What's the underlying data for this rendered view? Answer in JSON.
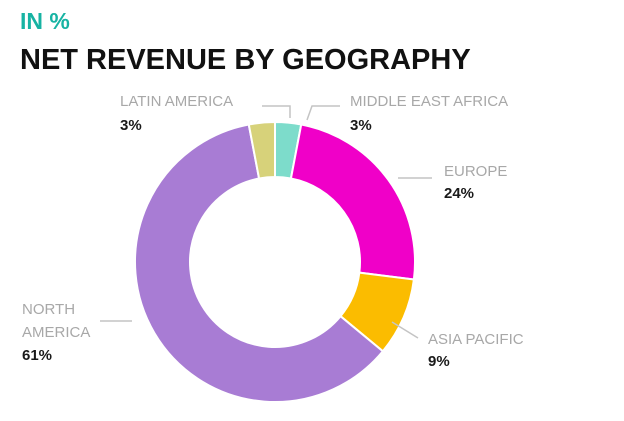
{
  "chart_data": {
    "type": "pie",
    "variant": "donut",
    "unit_label": "IN %",
    "title": "NET REVENUE BY GEOGRAPHY",
    "slices": [
      {
        "label": "MIDDLE EAST AFRICA",
        "value": 3,
        "value_label": "3%",
        "color": "#7ddccb"
      },
      {
        "label": "EUROPE",
        "value": 24,
        "value_label": "24%",
        "color": "#f000c8"
      },
      {
        "label": "ASIA PACIFIC",
        "value": 9,
        "value_label": "9%",
        "color": "#fbbc00"
      },
      {
        "label": "NORTH AMERICA",
        "value": 61,
        "value_label": "61%",
        "color": "#a87cd4"
      },
      {
        "label": "LATIN AMERICA",
        "value": 3,
        "value_label": "3%",
        "color": "#d7d27a"
      }
    ],
    "legend": "none"
  }
}
